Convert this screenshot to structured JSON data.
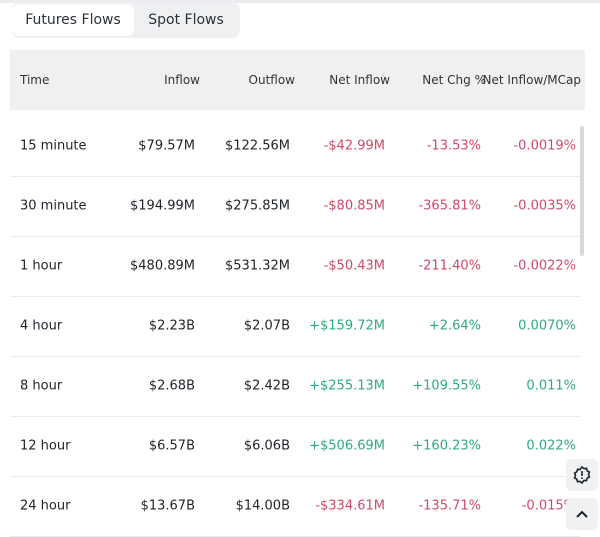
{
  "tabs": [
    {
      "label": "Futures Flows",
      "active": true
    },
    {
      "label": "Spot Flows",
      "active": false
    }
  ],
  "table": {
    "headers": [
      "Time",
      "Inflow",
      "Outflow",
      "Net Inflow",
      "Net Chg %",
      "Net Inflow/MCap"
    ],
    "rows": [
      {
        "time": "15 minute",
        "inflow": "$79.57M",
        "outflow": "$122.56M",
        "net": "-$42.99M",
        "chg": "-13.53%",
        "mcap": "-0.0019%",
        "sign": "neg"
      },
      {
        "time": "30 minute",
        "inflow": "$194.99M",
        "outflow": "$275.85M",
        "net": "-$80.85M",
        "chg": "-365.81%",
        "mcap": "-0.0035%",
        "sign": "neg"
      },
      {
        "time": "1 hour",
        "inflow": "$480.89M",
        "outflow": "$531.32M",
        "net": "-$50.43M",
        "chg": "-211.40%",
        "mcap": "-0.0022%",
        "sign": "neg"
      },
      {
        "time": "4 hour",
        "inflow": "$2.23B",
        "outflow": "$2.07B",
        "net": "+$159.72M",
        "chg": "+2.64%",
        "mcap": "0.0070%",
        "sign": "pos"
      },
      {
        "time": "8 hour",
        "inflow": "$2.68B",
        "outflow": "$2.42B",
        "net": "+$255.13M",
        "chg": "+109.55%",
        "mcap": "0.011%",
        "sign": "pos"
      },
      {
        "time": "12 hour",
        "inflow": "$6.57B",
        "outflow": "$6.06B",
        "net": "+$506.69M",
        "chg": "+160.23%",
        "mcap": "0.022%",
        "sign": "pos"
      },
      {
        "time": "24 hour",
        "inflow": "$13.67B",
        "outflow": "$14.00B",
        "net": "-$334.61M",
        "chg": "-135.71%",
        "mcap": "-0.015%",
        "sign": "neg"
      }
    ]
  },
  "colors": {
    "negative": "#cf4a68",
    "positive": "#2fa883"
  },
  "icons": {
    "feedback": "alert-badge-icon",
    "scroll_top": "chevron-up-icon"
  }
}
